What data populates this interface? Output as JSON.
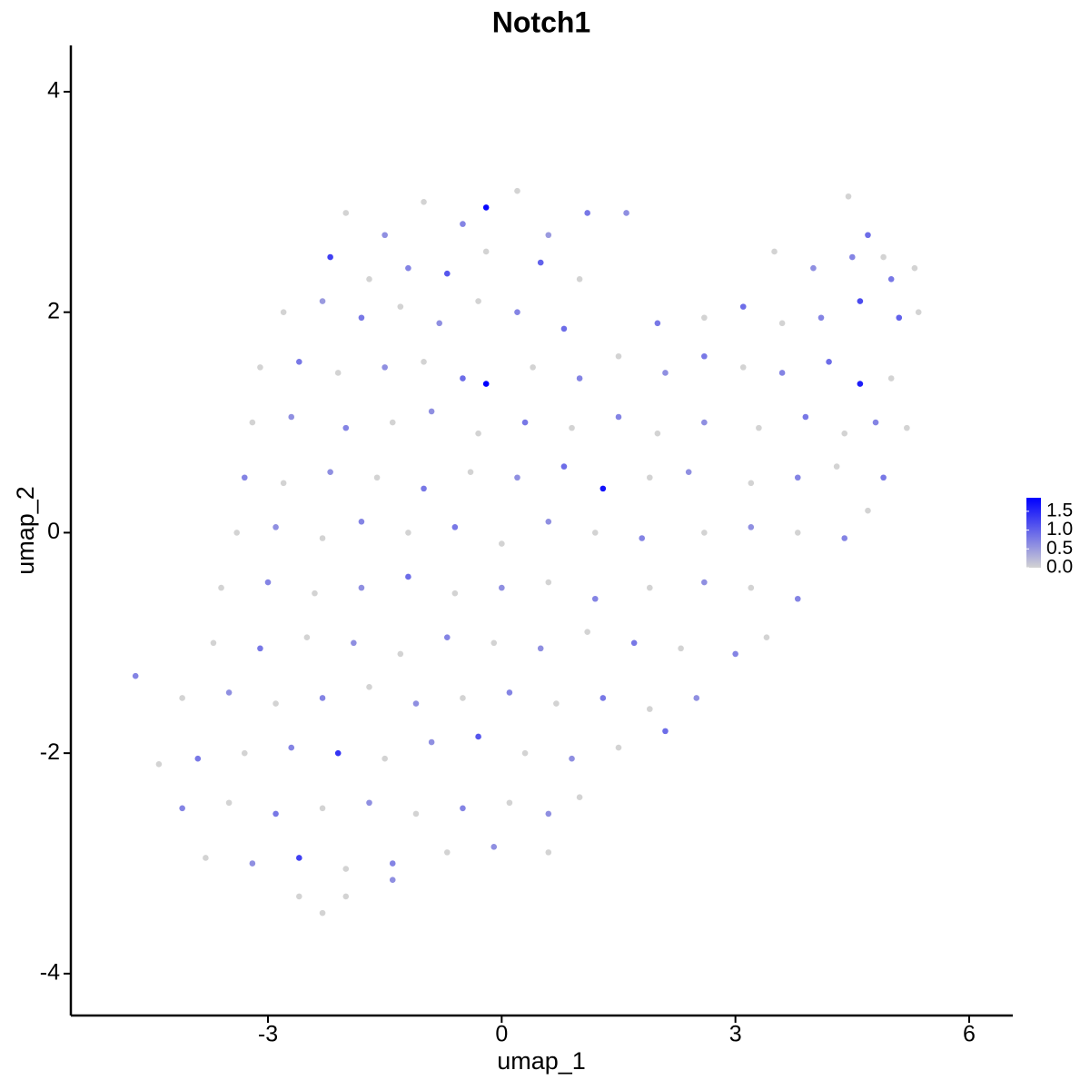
{
  "chart_data": {
    "type": "scatter",
    "title": "Notch1",
    "x_label": "umap_1",
    "y_label": "umap_2",
    "xlim": [
      -5.53,
      6.56
    ],
    "ylim": [
      -4.38,
      4.42
    ],
    "xticks": [
      -3,
      0,
      3,
      6
    ],
    "yticks": [
      -4,
      -2,
      0,
      2,
      4
    ],
    "x": [
      -2.0,
      -1.5,
      -1.0,
      -0.5,
      -0.2,
      0.2,
      0.6,
      1.1,
      1.6,
      4.45,
      4.7,
      4.9,
      -2.2,
      -1.7,
      -1.2,
      -0.7,
      -0.2,
      0.5,
      1.0,
      3.5,
      4.0,
      4.5,
      5.0,
      5.3,
      -2.8,
      -2.3,
      -1.8,
      -1.3,
      -0.8,
      -0.3,
      0.2,
      0.8,
      2.0,
      2.6,
      3.1,
      3.6,
      4.1,
      4.6,
      5.1,
      5.35,
      -3.1,
      -2.6,
      -2.1,
      -1.5,
      -1.0,
      -0.5,
      -0.2,
      0.4,
      1.0,
      1.5,
      2.1,
      2.6,
      3.1,
      3.6,
      4.2,
      4.6,
      5.0,
      -3.2,
      -2.7,
      -2.0,
      -1.4,
      -0.9,
      -0.3,
      0.3,
      0.9,
      1.5,
      2.0,
      2.6,
      3.3,
      3.9,
      4.4,
      4.8,
      5.2,
      -3.3,
      -2.8,
      -2.2,
      -1.6,
      -1.0,
      -0.4,
      0.2,
      0.8,
      1.3,
      1.9,
      2.4,
      3.2,
      3.8,
      4.3,
      4.9,
      -3.4,
      -2.9,
      -2.3,
      -1.8,
      -1.2,
      -0.6,
      0.0,
      0.6,
      1.2,
      1.8,
      2.6,
      3.2,
      3.8,
      4.4,
      4.7,
      -3.6,
      -3.0,
      -2.4,
      -1.8,
      -1.2,
      -0.6,
      0.0,
      0.6,
      1.2,
      1.9,
      2.6,
      3.2,
      3.8,
      -3.7,
      -3.1,
      -2.5,
      -1.9,
      -1.3,
      -0.7,
      -0.1,
      0.5,
      1.1,
      1.7,
      2.3,
      3.0,
      3.4,
      -4.7,
      -4.1,
      -3.5,
      -2.9,
      -2.3,
      -1.7,
      -1.1,
      -0.5,
      0.1,
      0.7,
      1.3,
      1.9,
      2.5,
      -4.4,
      -3.9,
      -3.3,
      -2.7,
      -2.1,
      -1.5,
      -0.9,
      -0.3,
      0.3,
      0.9,
      1.5,
      2.1,
      -4.1,
      -3.5,
      -2.9,
      -2.3,
      -1.7,
      -1.1,
      -0.5,
      0.1,
      0.6,
      1.0,
      -3.8,
      -3.2,
      -2.6,
      -2.0,
      -1.4,
      -0.7,
      -0.1,
      0.6,
      -2.6,
      -2.3,
      -2.0,
      -1.4
    ],
    "y": [
      2.9,
      2.7,
      3.0,
      2.8,
      2.95,
      3.1,
      2.7,
      2.9,
      2.9,
      3.05,
      2.7,
      2.5,
      2.5,
      2.3,
      2.4,
      2.35,
      2.55,
      2.45,
      2.3,
      2.55,
      2.4,
      2.5,
      2.3,
      2.4,
      2.0,
      2.1,
      1.95,
      2.05,
      1.9,
      2.1,
      2.0,
      1.85,
      1.9,
      1.95,
      2.05,
      1.9,
      1.95,
      2.1,
      1.95,
      2.0,
      1.5,
      1.55,
      1.45,
      1.5,
      1.55,
      1.4,
      1.35,
      1.5,
      1.4,
      1.6,
      1.45,
      1.6,
      1.5,
      1.45,
      1.55,
      1.35,
      1.4,
      1.0,
      1.05,
      0.95,
      1.0,
      1.1,
      0.9,
      1.0,
      0.95,
      1.05,
      0.9,
      1.0,
      0.95,
      1.05,
      0.9,
      1.0,
      0.95,
      0.5,
      0.45,
      0.55,
      0.5,
      0.4,
      0.55,
      0.5,
      0.6,
      0.4,
      0.5,
      0.55,
      0.45,
      0.5,
      0.6,
      0.5,
      0.0,
      0.05,
      -0.05,
      0.1,
      0.0,
      0.05,
      -0.1,
      0.1,
      0.0,
      -0.05,
      0.0,
      0.05,
      0.0,
      -0.05,
      0.2,
      -0.5,
      -0.45,
      -0.55,
      -0.5,
      -0.4,
      -0.55,
      -0.5,
      -0.45,
      -0.6,
      -0.5,
      -0.45,
      -0.5,
      -0.6,
      -1.0,
      -1.05,
      -0.95,
      -1.0,
      -1.1,
      -0.95,
      -1.0,
      -1.05,
      -0.9,
      -1.0,
      -1.05,
      -1.1,
      -0.95,
      -1.3,
      -1.5,
      -1.45,
      -1.55,
      -1.5,
      -1.4,
      -1.55,
      -1.5,
      -1.45,
      -1.55,
      -1.5,
      -1.6,
      -1.5,
      -2.1,
      -2.05,
      -2.0,
      -1.95,
      -2.0,
      -2.05,
      -1.9,
      -1.85,
      -2.0,
      -2.05,
      -1.95,
      -1.8,
      -2.5,
      -2.45,
      -2.55,
      -2.5,
      -2.45,
      -2.55,
      -2.5,
      -2.45,
      -2.55,
      -2.4,
      -2.95,
      -3.0,
      -2.95,
      -3.05,
      -3.0,
      -2.9,
      -2.85,
      -2.9,
      -3.3,
      -3.45,
      -3.3,
      -3.15
    ],
    "values": [
      0,
      0.6,
      0,
      0.7,
      1.8,
      0,
      0.5,
      0.8,
      0.6,
      0,
      0.9,
      0,
      1.3,
      0,
      0.7,
      1.1,
      0,
      1.0,
      0,
      0,
      0.6,
      0.7,
      0.8,
      0,
      0,
      0.5,
      0.8,
      0,
      0.6,
      0,
      0.7,
      0.9,
      0.8,
      0,
      0.9,
      0,
      0.7,
      1.2,
      1.0,
      0,
      0,
      0.8,
      0,
      0.6,
      0,
      0.9,
      1.9,
      0,
      0.7,
      0,
      0.6,
      0.8,
      0,
      0.7,
      0.9,
      1.6,
      0,
      0,
      0.6,
      0.7,
      0,
      0.6,
      0,
      0.8,
      0,
      0.7,
      0,
      0.6,
      0,
      0.8,
      0,
      0.7,
      0,
      0.7,
      0,
      0.6,
      0,
      0.8,
      0,
      0.6,
      0.9,
      1.7,
      0,
      0.6,
      0,
      0.7,
      0,
      0.8,
      0,
      0.6,
      0,
      0.7,
      0,
      0.8,
      0,
      0.6,
      0,
      0.7,
      0,
      0.6,
      0,
      0.7,
      0,
      0,
      0.7,
      0,
      0.6,
      0.9,
      0,
      0.6,
      0,
      0.7,
      0,
      0.6,
      0,
      0.7,
      0,
      0.8,
      0,
      0.6,
      0,
      0.7,
      0,
      0.6,
      0,
      0.8,
      0,
      0.7,
      0,
      0.7,
      0,
      0.6,
      0,
      0.7,
      0,
      0.6,
      0,
      0.7,
      0,
      0.8,
      0,
      0.6,
      0,
      0.8,
      0,
      0.7,
      1.4,
      0,
      0.6,
      1.1,
      0,
      0.6,
      0,
      0.9,
      0.7,
      0,
      0.8,
      0,
      0.6,
      0,
      0.7,
      0,
      0.6,
      0,
      0,
      0.6,
      1.3,
      0,
      0.7,
      0,
      0.6,
      0,
      0,
      0,
      0,
      0.6
    ],
    "color_scale": {
      "low_color": "#d3d3d3",
      "high_color": "#0000ff",
      "lim": [
        0,
        1.86
      ],
      "ticks": [
        {
          "value": 0,
          "label": "0.0"
        },
        {
          "value": 0.5,
          "label": "0.5"
        },
        {
          "value": 1,
          "label": "1.0"
        },
        1.5
      ]
    }
  }
}
